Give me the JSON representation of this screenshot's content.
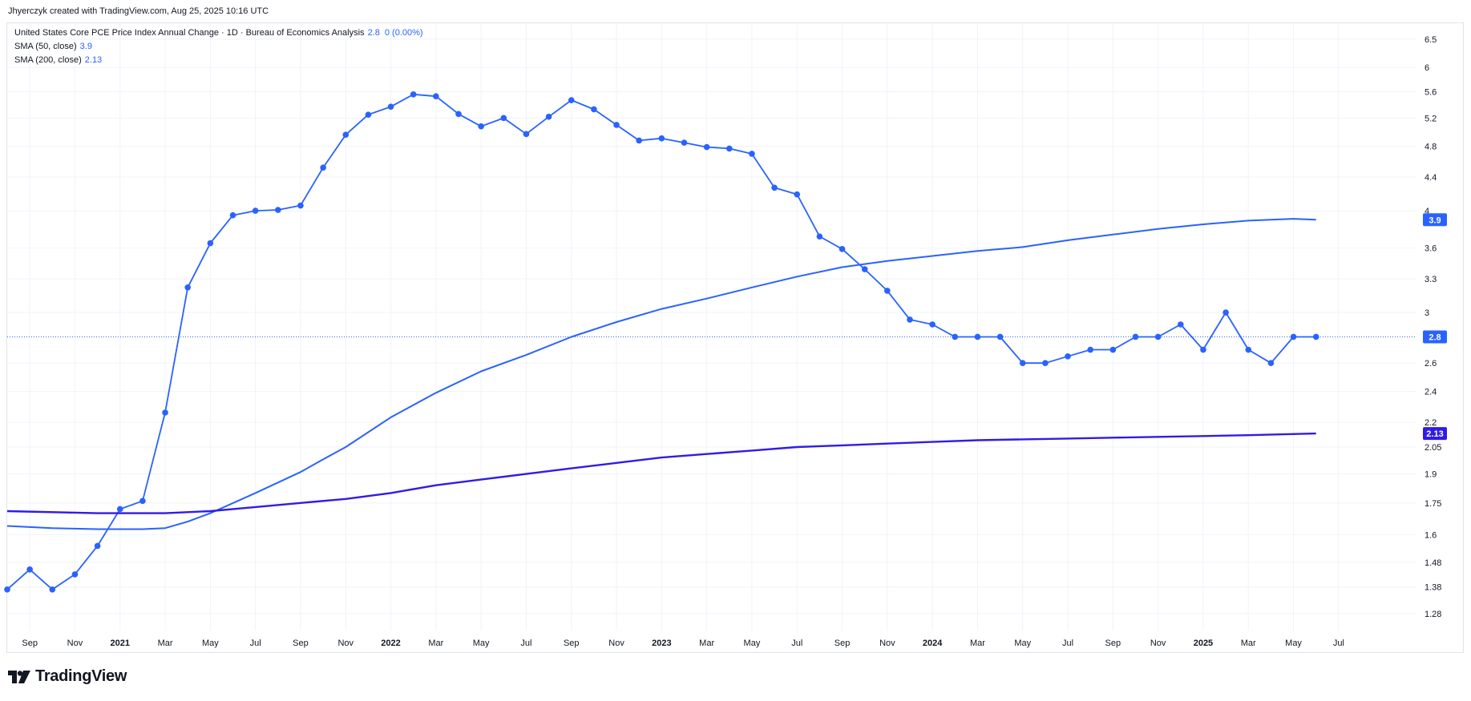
{
  "header": {
    "credit": "Jhyerczyk created with TradingView.com, Aug 25, 2025 10:16 UTC"
  },
  "legend": {
    "main_label": "United States Core PCE Price Index Annual Change · 1D · Bureau of Economics Analysis",
    "main_value": "2.8",
    "main_change": "0 (0.00%)",
    "sma50_label": "SMA (50, close)",
    "sma50_value": "3.9",
    "sma200_label": "SMA (200, close)",
    "sma200_value": "2.13"
  },
  "branding": {
    "logo_text": "TradingView"
  },
  "colors": {
    "main": "#2962ff",
    "sma50": "#2962ff",
    "sma200": "#311be8",
    "grid": "#f0f3fa",
    "axis_text": "#131722"
  },
  "chart_data": {
    "type": "line",
    "scale": "log",
    "grid": true,
    "y_ticks": [
      6.5,
      6,
      5.6,
      5.2,
      4.8,
      4.4,
      4,
      3.6,
      3.3,
      3,
      2.6,
      2.4,
      2.2,
      2.05,
      1.9,
      1.75,
      1.6,
      1.48,
      1.38,
      1.28
    ],
    "y_tick_labels": [
      "6.5",
      "6",
      "5.6",
      "5.2",
      "4.8",
      "4.4",
      "4",
      "3.6",
      "3.3",
      "3",
      "2.6",
      "2.4",
      "2.2",
      "2.05",
      "1.9",
      "1.75",
      "1.6",
      "1.48",
      "1.38",
      "1.28"
    ],
    "x_ticks": [
      {
        "label": "Sep",
        "date": "2020-09",
        "bold": false
      },
      {
        "label": "Nov",
        "date": "2020-11",
        "bold": false
      },
      {
        "label": "2021",
        "date": "2021-01",
        "bold": true
      },
      {
        "label": "Mar",
        "date": "2021-03",
        "bold": false
      },
      {
        "label": "May",
        "date": "2021-05",
        "bold": false
      },
      {
        "label": "Jul",
        "date": "2021-07",
        "bold": false
      },
      {
        "label": "Sep",
        "date": "2021-09",
        "bold": false
      },
      {
        "label": "Nov",
        "date": "2021-11",
        "bold": false
      },
      {
        "label": "2022",
        "date": "2022-01",
        "bold": true
      },
      {
        "label": "Mar",
        "date": "2022-03",
        "bold": false
      },
      {
        "label": "May",
        "date": "2022-05",
        "bold": false
      },
      {
        "label": "Jul",
        "date": "2022-07",
        "bold": false
      },
      {
        "label": "Sep",
        "date": "2022-09",
        "bold": false
      },
      {
        "label": "Nov",
        "date": "2022-11",
        "bold": false
      },
      {
        "label": "2023",
        "date": "2023-01",
        "bold": true
      },
      {
        "label": "Mar",
        "date": "2023-03",
        "bold": false
      },
      {
        "label": "May",
        "date": "2023-05",
        "bold": false
      },
      {
        "label": "Jul",
        "date": "2023-07",
        "bold": false
      },
      {
        "label": "Sep",
        "date": "2023-09",
        "bold": false
      },
      {
        "label": "Nov",
        "date": "2023-11",
        "bold": false
      },
      {
        "label": "2024",
        "date": "2024-01",
        "bold": true
      },
      {
        "label": "Mar",
        "date": "2024-03",
        "bold": false
      },
      {
        "label": "May",
        "date": "2024-05",
        "bold": false
      },
      {
        "label": "Jul",
        "date": "2024-07",
        "bold": false
      },
      {
        "label": "Sep",
        "date": "2024-09",
        "bold": false
      },
      {
        "label": "Nov",
        "date": "2024-11",
        "bold": false
      },
      {
        "label": "2025",
        "date": "2025-01",
        "bold": true
      },
      {
        "label": "Mar",
        "date": "2025-03",
        "bold": false
      },
      {
        "label": "May",
        "date": "2025-05",
        "bold": false
      },
      {
        "label": "Jul",
        "date": "2025-07",
        "bold": false
      }
    ],
    "x_range": [
      "2020-08",
      "2025-09"
    ],
    "last_value_tag": "2.8",
    "series": [
      {
        "name": "United States Core PCE Price Index Annual Change",
        "markers": true,
        "points": [
          [
            "2020-08",
            1.37
          ],
          [
            "2020-09",
            1.45
          ],
          [
            "2020-10",
            1.37
          ],
          [
            "2020-11",
            1.43
          ],
          [
            "2020-12",
            1.55
          ],
          [
            "2021-01",
            1.72
          ],
          [
            "2021-02",
            1.76
          ],
          [
            "2021-03",
            2.26
          ],
          [
            "2021-04",
            3.22
          ],
          [
            "2021-05",
            3.65
          ],
          [
            "2021-06",
            3.95
          ],
          [
            "2021-07",
            4.0
          ],
          [
            "2021-08",
            4.01
          ],
          [
            "2021-09",
            4.06
          ],
          [
            "2021-10",
            4.52
          ],
          [
            "2021-11",
            4.96
          ],
          [
            "2021-12",
            5.25
          ],
          [
            "2022-01",
            5.37
          ],
          [
            "2022-02",
            5.56
          ],
          [
            "2022-03",
            5.53
          ],
          [
            "2022-04",
            5.26
          ],
          [
            "2022-05",
            5.08
          ],
          [
            "2022-06",
            5.2
          ],
          [
            "2022-07",
            4.97
          ],
          [
            "2022-08",
            5.22
          ],
          [
            "2022-09",
            5.47
          ],
          [
            "2022-10",
            5.33
          ],
          [
            "2022-11",
            5.1
          ],
          [
            "2022-12",
            4.88
          ],
          [
            "2023-01",
            4.91
          ],
          [
            "2023-02",
            4.85
          ],
          [
            "2023-03",
            4.79
          ],
          [
            "2023-04",
            4.77
          ],
          [
            "2023-05",
            4.7
          ],
          [
            "2023-06",
            4.27
          ],
          [
            "2023-07",
            4.19
          ],
          [
            "2023-08",
            3.72
          ],
          [
            "2023-09",
            3.59
          ],
          [
            "2023-10",
            3.39
          ],
          [
            "2023-11",
            3.19
          ],
          [
            "2023-12",
            2.94
          ],
          [
            "2024-01",
            2.9
          ],
          [
            "2024-02",
            2.8
          ],
          [
            "2024-03",
            2.8
          ],
          [
            "2024-04",
            2.8
          ],
          [
            "2024-05",
            2.6
          ],
          [
            "2024-06",
            2.6
          ],
          [
            "2024-07",
            2.65
          ],
          [
            "2024-08",
            2.7
          ],
          [
            "2024-09",
            2.7
          ],
          [
            "2024-10",
            2.8
          ],
          [
            "2024-11",
            2.8
          ],
          [
            "2024-12",
            2.9
          ],
          [
            "2025-01",
            2.7
          ],
          [
            "2025-02",
            3.0
          ],
          [
            "2025-03",
            2.7
          ],
          [
            "2025-04",
            2.6
          ],
          [
            "2025-05",
            2.8
          ],
          [
            "2025-06",
            2.8
          ]
        ]
      },
      {
        "name": "SMA (50, close)",
        "markers": false,
        "points": [
          [
            "2020-08",
            1.64
          ],
          [
            "2020-10",
            1.63
          ],
          [
            "2020-12",
            1.625
          ],
          [
            "2021-02",
            1.625
          ],
          [
            "2021-03",
            1.63
          ],
          [
            "2021-04",
            1.66
          ],
          [
            "2021-05",
            1.7
          ],
          [
            "2021-07",
            1.8
          ],
          [
            "2021-09",
            1.91
          ],
          [
            "2021-10",
            1.98
          ],
          [
            "2021-11",
            2.05
          ],
          [
            "2022-01",
            2.23
          ],
          [
            "2022-03",
            2.39
          ],
          [
            "2022-05",
            2.54
          ],
          [
            "2022-07",
            2.66
          ],
          [
            "2022-09",
            2.8
          ],
          [
            "2022-11",
            2.92
          ],
          [
            "2023-01",
            3.03
          ],
          [
            "2023-03",
            3.12
          ],
          [
            "2023-05",
            3.22
          ],
          [
            "2023-07",
            3.32
          ],
          [
            "2023-09",
            3.41
          ],
          [
            "2023-11",
            3.47
          ],
          [
            "2024-01",
            3.52
          ],
          [
            "2024-03",
            3.57
          ],
          [
            "2024-05",
            3.61
          ],
          [
            "2024-07",
            3.68
          ],
          [
            "2024-09",
            3.74
          ],
          [
            "2024-11",
            3.8
          ],
          [
            "2025-01",
            3.85
          ],
          [
            "2025-03",
            3.89
          ],
          [
            "2025-05",
            3.91
          ],
          [
            "2025-06",
            3.9
          ]
        ]
      },
      {
        "name": "SMA (200, close)",
        "markers": false,
        "points": [
          [
            "2020-08",
            1.71
          ],
          [
            "2020-12",
            1.7
          ],
          [
            "2021-03",
            1.7
          ],
          [
            "2021-05",
            1.71
          ],
          [
            "2021-07",
            1.73
          ],
          [
            "2021-09",
            1.75
          ],
          [
            "2021-11",
            1.77
          ],
          [
            "2022-01",
            1.8
          ],
          [
            "2022-03",
            1.84
          ],
          [
            "2022-05",
            1.87
          ],
          [
            "2022-07",
            1.9
          ],
          [
            "2022-09",
            1.93
          ],
          [
            "2022-11",
            1.96
          ],
          [
            "2023-01",
            1.99
          ],
          [
            "2023-03",
            2.01
          ],
          [
            "2023-05",
            2.03
          ],
          [
            "2023-07",
            2.05
          ],
          [
            "2023-09",
            2.06
          ],
          [
            "2023-11",
            2.07
          ],
          [
            "2024-01",
            2.08
          ],
          [
            "2024-03",
            2.09
          ],
          [
            "2024-05",
            2.095
          ],
          [
            "2024-07",
            2.1
          ],
          [
            "2024-09",
            2.105
          ],
          [
            "2024-11",
            2.11
          ],
          [
            "2025-01",
            2.115
          ],
          [
            "2025-03",
            2.12
          ],
          [
            "2025-06",
            2.13
          ]
        ]
      }
    ]
  }
}
